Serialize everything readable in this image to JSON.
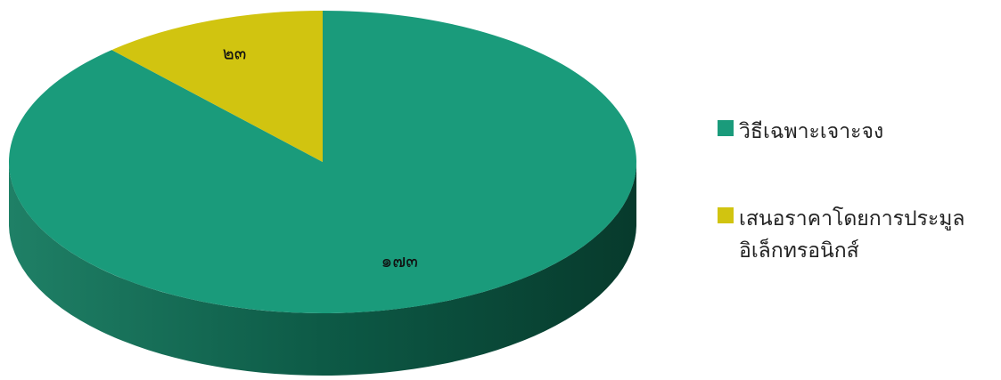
{
  "chart_data": {
    "type": "pie",
    "style": "3d",
    "title": "",
    "categories": [
      "วิธีเฉพาะเจาะจง",
      "เสนอราคาโดยการประมูล อิเล็กทรอนิกส์"
    ],
    "values": [
      173,
      23
    ],
    "data_labels": [
      "๑๗๓",
      "๒๓"
    ],
    "colors": [
      "#1a9b7b",
      "#d1c410"
    ],
    "legend": {
      "position": "right",
      "items": [
        {
          "lines": [
            "วิธีเฉพาะเจาะจง"
          ],
          "color": "#1a9b7b"
        },
        {
          "lines": [
            "เสนอราคาโดยการประมูล",
            "อิเล็กทรอนิกส์"
          ],
          "color": "#d1c410"
        }
      ]
    }
  }
}
